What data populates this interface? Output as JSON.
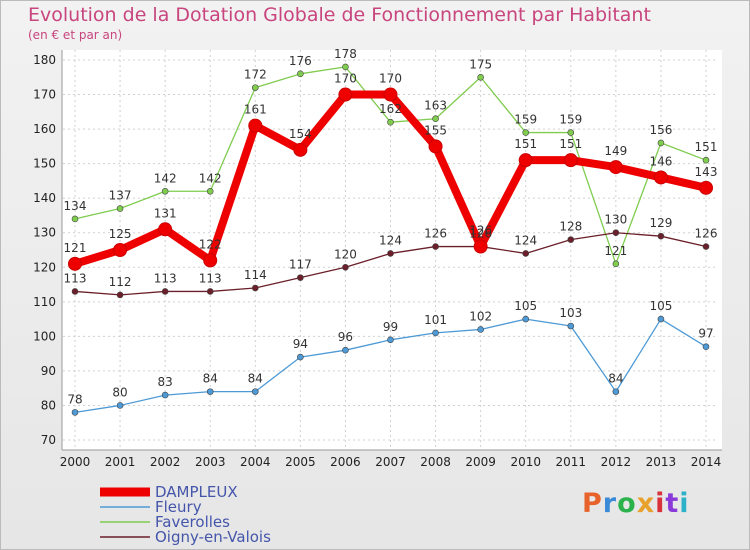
{
  "title": "Evolution de la Dotation Globale de Fonctionnement par Habitant",
  "subtitle": "(en € et par an)",
  "logo": {
    "text": "Proxiti",
    "colors": [
      "#e8632b",
      "#3a8ad8",
      "#2bb24c",
      "#e8a12b",
      "#d8323a",
      "#8a3ad8",
      "#2bb2c8"
    ]
  },
  "chart_data": {
    "type": "line",
    "x": [
      "2000",
      "2001",
      "2002",
      "2003",
      "2004",
      "2005",
      "2006",
      "2007",
      "2008",
      "2009",
      "2010",
      "2011",
      "2012",
      "2013",
      "2014"
    ],
    "ylim": [
      70,
      180
    ],
    "yticks": [
      70,
      80,
      90,
      100,
      110,
      120,
      130,
      140,
      150,
      160,
      170,
      180
    ],
    "grid": true,
    "legend_position": "bottom-left",
    "series": [
      {
        "name": "Faverolles",
        "color": "#7fcc4e",
        "width": 1.3,
        "marker": 3,
        "values": [
          134,
          137,
          142,
          142,
          172,
          176,
          178,
          162,
          163,
          175,
          159,
          159,
          121,
          156,
          151
        ]
      },
      {
        "name": "Oigny-en-Valois",
        "color": "#6b1f2a",
        "width": 1.3,
        "marker": 3,
        "values": [
          113,
          112,
          113,
          113,
          114,
          117,
          120,
          124,
          126,
          126,
          124,
          128,
          130,
          129,
          126
        ]
      },
      {
        "name": "Fleury",
        "color": "#4d9ad6",
        "width": 1.3,
        "marker": 3,
        "values": [
          78,
          80,
          83,
          84,
          84,
          94,
          96,
          99,
          101,
          102,
          105,
          103,
          84,
          105,
          97
        ]
      },
      {
        "name": "DAMPLEUX",
        "color": "#ee0000",
        "width": 8,
        "marker": 6.5,
        "values": [
          121,
          125,
          131,
          122,
          161,
          154,
          170,
          170,
          155,
          126,
          151,
          151,
          149,
          146,
          143
        ]
      }
    ],
    "legend": [
      "DAMPLEUX",
      "Fleury",
      "Faverolles",
      "Oigny-en-Valois"
    ]
  }
}
